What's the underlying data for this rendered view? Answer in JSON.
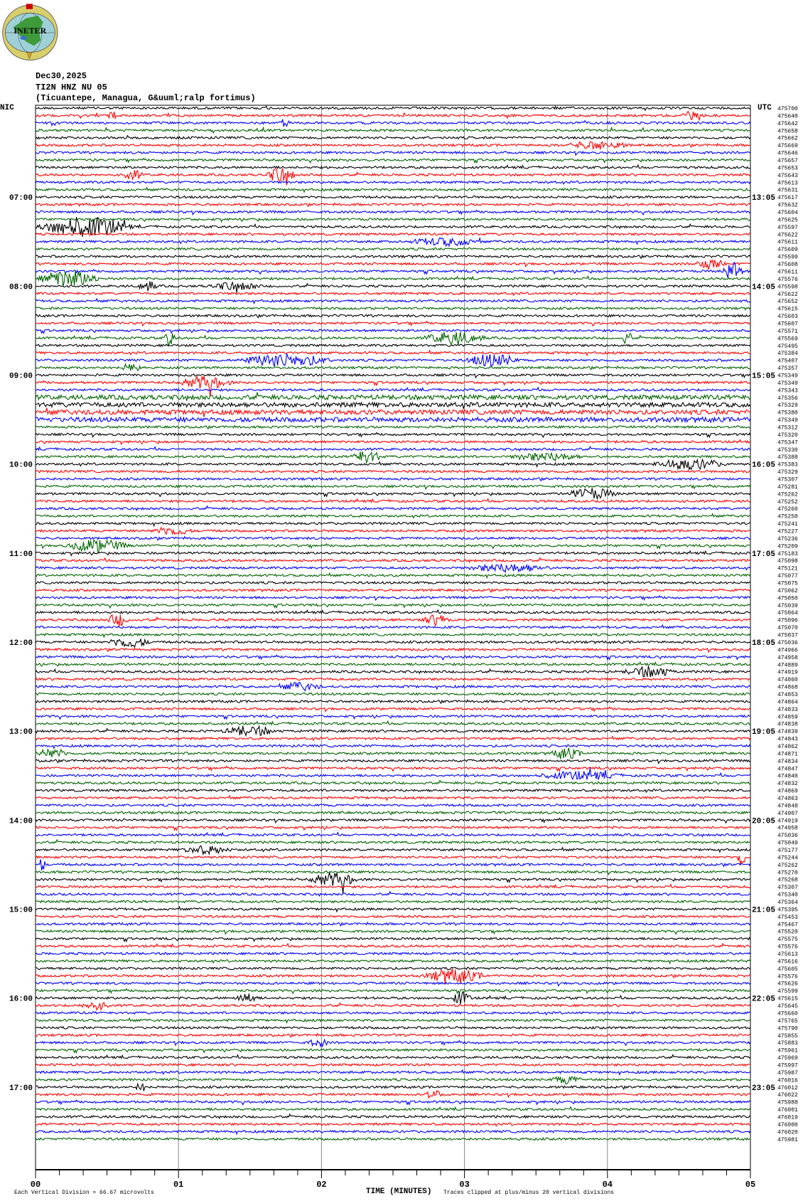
{
  "logo_text": "INETER",
  "header": {
    "date": "Dec30,2025",
    "station": "TI2N HNZ NU 05",
    "location": "(Ticuantepe, Managua, G&uuml;ralp fortimus)"
  },
  "left_zone_label": "NIC",
  "right_zone_label": "UTC",
  "footer": {
    "scale_note": "Each Vertical Division =   66.67 microvolts",
    "xlabel": "TIME (MINUTES)",
    "clip_note": "Traces clipped at plus/minus 20 vertical divisions"
  },
  "colors": {
    "trace_cycle": [
      "#000000",
      "#ff0000",
      "#0000ff",
      "#006400"
    ],
    "grid": "#888888"
  },
  "chart_data": {
    "type": "helicorder",
    "minutes_per_line": 5,
    "x_ticks": [
      "00",
      "01",
      "02",
      "03",
      "04",
      "05"
    ],
    "xlim": [
      0,
      5
    ],
    "x_minor_step_seconds": 10,
    "grid": true,
    "local_start": "06:00",
    "left_time_labels": [
      "07:00",
      "08:00",
      "09:00",
      "10:00",
      "11:00",
      "12:00",
      "13:00",
      "14:00",
      "15:00",
      "16:00",
      "17:00"
    ],
    "right_time_labels": [
      "13:05",
      "14:05",
      "15:05",
      "16:05",
      "17:05",
      "18:05",
      "19:05",
      "20:05",
      "21:05",
      "22:05",
      "23:05"
    ],
    "line_values": [
      "475700",
      "475640",
      "475642",
      "475658",
      "475662",
      "475669",
      "475646",
      "475657",
      "475653",
      "475643",
      "475613",
      "475631",
      "475617",
      "475632",
      "475604",
      "475625",
      "475597",
      "475622",
      "475611",
      "475609",
      "475599",
      "475608",
      "475611",
      "475576",
      "475598",
      "475622",
      "475652",
      "475615",
      "475603",
      "475607",
      "475571",
      "475569",
      "475495",
      "475384",
      "475407",
      "475357",
      "475349",
      "475349",
      "475343",
      "475356",
      "475329",
      "475380",
      "475349",
      "475312",
      "475320",
      "475347",
      "475330",
      "475388",
      "475383",
      "475329",
      "475307",
      "475281",
      "475262",
      "475252",
      "475260",
      "475250",
      "475241",
      "475227",
      "475236",
      "475209",
      "475183",
      "475098",
      "475121",
      "475077",
      "475075",
      "475062",
      "475050",
      "475039",
      "475064",
      "475096",
      "475070",
      "475037",
      "475036",
      "474966",
      "474958",
      "474889",
      "474919",
      "474860",
      "474868",
      "474853",
      "474864",
      "474833",
      "474859",
      "474838",
      "474839",
      "474843",
      "474862",
      "474871",
      "474834",
      "474847",
      "474840",
      "474832",
      "474869",
      "474863",
      "474848",
      "474907",
      "474919",
      "474958",
      "475036",
      "475049",
      "475177",
      "475244",
      "475262",
      "475270",
      "475268",
      "475307",
      "475340",
      "475364",
      "475395",
      "475453",
      "475467",
      "475520",
      "475575",
      "475576",
      "475613",
      "475616",
      "475605",
      "475576",
      "475626",
      "475599",
      "475615",
      "475645",
      "475660",
      "475765",
      "475790",
      "475855",
      "475883",
      "475961",
      "475969",
      "475997",
      "475987",
      "476016",
      "476012",
      "476022",
      "475988",
      "476001",
      "476019",
      "476000",
      "476020",
      "475981"
    ],
    "noisy_lines": [
      39,
      40,
      41,
      42
    ],
    "events": [
      {
        "line": 1,
        "from": 0.5,
        "to": 0.6,
        "amp": 3
      },
      {
        "line": 1,
        "from": 4.5,
        "to": 4.7,
        "amp": 3
      },
      {
        "line": 2,
        "from": 1.7,
        "to": 1.8,
        "amp": 3
      },
      {
        "line": 5,
        "from": 3.7,
        "to": 4.3,
        "amp": 3
      },
      {
        "line": 9,
        "from": 0.6,
        "to": 0.8,
        "amp": 4
      },
      {
        "line": 9,
        "from": 1.6,
        "to": 1.9,
        "amp": 6
      },
      {
        "line": 16,
        "from": 0.0,
        "to": 0.9,
        "amp": 8
      },
      {
        "line": 18,
        "from": 2.6,
        "to": 3.3,
        "amp": 3
      },
      {
        "line": 21,
        "from": 4.6,
        "to": 4.9,
        "amp": 4
      },
      {
        "line": 22,
        "from": 4.8,
        "to": 5.0,
        "amp": 7
      },
      {
        "line": 23,
        "from": 0.0,
        "to": 0.6,
        "amp": 7
      },
      {
        "line": 24,
        "from": 0.7,
        "to": 0.9,
        "amp": 4
      },
      {
        "line": 24,
        "from": 1.2,
        "to": 1.7,
        "amp": 3
      },
      {
        "line": 31,
        "from": 0.9,
        "to": 1.0,
        "amp": 8
      },
      {
        "line": 31,
        "from": 2.7,
        "to": 3.3,
        "amp": 5
      },
      {
        "line": 31,
        "from": 4.1,
        "to": 4.2,
        "amp": 5
      },
      {
        "line": 34,
        "from": 1.4,
        "to": 2.3,
        "amp": 5
      },
      {
        "line": 34,
        "from": 3.0,
        "to": 3.5,
        "amp": 5
      },
      {
        "line": 35,
        "from": 0.6,
        "to": 0.8,
        "amp": 4
      },
      {
        "line": 37,
        "from": 1.0,
        "to": 1.5,
        "amp": 5
      },
      {
        "line": 47,
        "from": 2.2,
        "to": 2.5,
        "amp": 5
      },
      {
        "line": 47,
        "from": 3.3,
        "to": 4.0,
        "amp": 3
      },
      {
        "line": 48,
        "from": 4.3,
        "to": 5.0,
        "amp": 4
      },
      {
        "line": 52,
        "from": 3.7,
        "to": 4.2,
        "amp": 4
      },
      {
        "line": 57,
        "from": 0.8,
        "to": 1.2,
        "amp": 3
      },
      {
        "line": 59,
        "from": 0.2,
        "to": 0.8,
        "amp": 5
      },
      {
        "line": 62,
        "from": 3.0,
        "to": 3.8,
        "amp": 3
      },
      {
        "line": 69,
        "from": 0.5,
        "to": 0.7,
        "amp": 5
      },
      {
        "line": 69,
        "from": 2.7,
        "to": 3.0,
        "amp": 4
      },
      {
        "line": 72,
        "from": 0.5,
        "to": 0.9,
        "amp": 4
      },
      {
        "line": 76,
        "from": 4.1,
        "to": 4.6,
        "amp": 4
      },
      {
        "line": 78,
        "from": 1.7,
        "to": 2.1,
        "amp": 3
      },
      {
        "line": 84,
        "from": 1.3,
        "to": 1.8,
        "amp": 4
      },
      {
        "line": 87,
        "from": 0.0,
        "to": 0.3,
        "amp": 4
      },
      {
        "line": 87,
        "from": 3.6,
        "to": 3.9,
        "amp": 4
      },
      {
        "line": 90,
        "from": 3.5,
        "to": 4.3,
        "amp": 3
      },
      {
        "line": 100,
        "from": 1.0,
        "to": 1.5,
        "amp": 3
      },
      {
        "line": 101,
        "from": 4.9,
        "to": 5.0,
        "amp": 7
      },
      {
        "line": 102,
        "from": 0.0,
        "to": 0.1,
        "amp": 5
      },
      {
        "line": 104,
        "from": 1.9,
        "to": 2.4,
        "amp": 5
      },
      {
        "line": 117,
        "from": 2.7,
        "to": 3.3,
        "amp": 5
      },
      {
        "line": 120,
        "from": 1.4,
        "to": 1.6,
        "amp": 5
      },
      {
        "line": 120,
        "from": 2.9,
        "to": 3.1,
        "amp": 5
      },
      {
        "line": 121,
        "from": 0.3,
        "to": 0.6,
        "amp": 3
      },
      {
        "line": 126,
        "from": 1.9,
        "to": 2.1,
        "amp": 3
      },
      {
        "line": 131,
        "from": 3.6,
        "to": 3.9,
        "amp": 3
      },
      {
        "line": 132,
        "from": 0.7,
        "to": 0.8,
        "amp": 4
      },
      {
        "line": 133,
        "from": 2.7,
        "to": 2.9,
        "amp": 3
      }
    ]
  }
}
